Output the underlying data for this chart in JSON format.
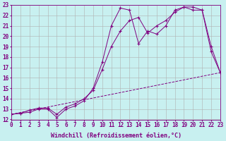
{
  "xlabel": "Windchill (Refroidissement éolien,°C)",
  "bg_color": "#c8f0f0",
  "line_color": "#800080",
  "xmin": 0,
  "xmax": 23,
  "ymin": 12,
  "ymax": 23,
  "line1_x": [
    0,
    1,
    2,
    3,
    4,
    5,
    6,
    7,
    8,
    9,
    10,
    11,
    12,
    13,
    14,
    15,
    16,
    17,
    18,
    19,
    20,
    21,
    22,
    23
  ],
  "line1_y": [
    12.5,
    12.6,
    12.7,
    13.0,
    13.0,
    12.2,
    13.0,
    13.3,
    13.8,
    15.0,
    17.5,
    21.0,
    22.7,
    22.5,
    19.3,
    20.5,
    20.2,
    21.0,
    22.5,
    22.8,
    22.8,
    22.5,
    19.0,
    16.5
  ],
  "line2_x": [
    0,
    1,
    2,
    3,
    4,
    5,
    6,
    7,
    8,
    9,
    10,
    11,
    12,
    13,
    14,
    15,
    16,
    17,
    18,
    19,
    20,
    21,
    22,
    23
  ],
  "line2_y": [
    12.5,
    12.6,
    12.9,
    13.1,
    13.1,
    12.5,
    13.2,
    13.5,
    14.0,
    14.8,
    16.8,
    19.0,
    20.5,
    21.5,
    21.8,
    20.3,
    21.0,
    21.5,
    22.3,
    22.8,
    22.5,
    22.5,
    18.5,
    16.5
  ],
  "line3_x": [
    0,
    23
  ],
  "line3_y": [
    12.5,
    16.5
  ],
  "grid_color": "#b0b0b0",
  "font_size_label": 6,
  "font_size_tick": 5.5
}
